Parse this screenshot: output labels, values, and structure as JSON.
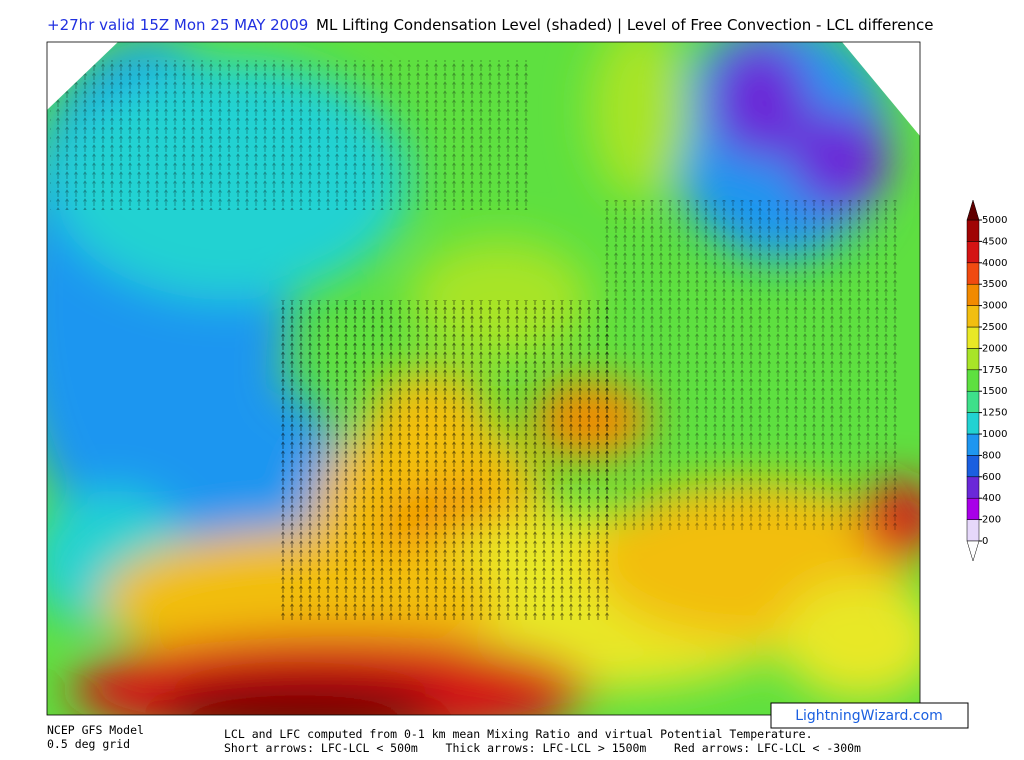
{
  "header": {
    "run": "+27hr valid 15Z Mon 25 MAY 2009",
    "title": "ML Lifting Condensation Level (shaded) | Level of Free Convection - LCL difference"
  },
  "colorbar": {
    "levels": [
      0,
      200,
      400,
      600,
      800,
      1000,
      1250,
      1500,
      1750,
      2000,
      2500,
      3000,
      3500,
      4000,
      4500,
      5000
    ],
    "colors": [
      "#e6d8fa",
      "#a800e8",
      "#6a28d8",
      "#1a5fe0",
      "#1e96f0",
      "#22d2d2",
      "#3ee08a",
      "#5ee040",
      "#a8e428",
      "#e8e826",
      "#f2be10",
      "#f28a00",
      "#f04a10",
      "#d41414",
      "#a00404"
    ]
  },
  "footer": {
    "model": "NCEP GFS Model",
    "grid": "0.5 deg grid",
    "note1": "LCL and LFC computed from 0-1 km mean Mixing Ratio and virtual Potential Temperature.",
    "note2": "Short arrows: LFC-LCL < 500m    Thick arrows: LFC-LCL > 1500m    Red arrows: LFC-LCL < -300m"
  },
  "watermark": "LightningWizard.com"
}
